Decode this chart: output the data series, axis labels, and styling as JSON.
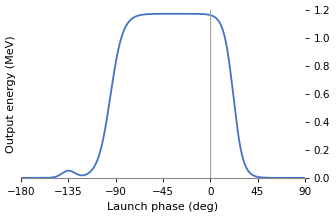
{
  "xlabel": "Launch phase (deg)",
  "ylabel": "Output energy (MeV)",
  "xlim": [
    -180,
    90
  ],
  "ylim": [
    0,
    1.2
  ],
  "xticks": [
    -180,
    -135,
    -90,
    -45,
    0,
    45,
    90
  ],
  "yticks": [
    0,
    0.2,
    0.4,
    0.6,
    0.8,
    1.0,
    1.2
  ],
  "line_color": "#4472C4",
  "line_width": 1.3,
  "vline_x": 0,
  "vline_color": "#a0a0a0",
  "background_color": "#ffffff",
  "xlabel_fontsize": 8,
  "ylabel_fontsize": 8,
  "tick_fontsize": 7.5,
  "figsize": [
    3.36,
    2.18
  ],
  "dpi": 100
}
